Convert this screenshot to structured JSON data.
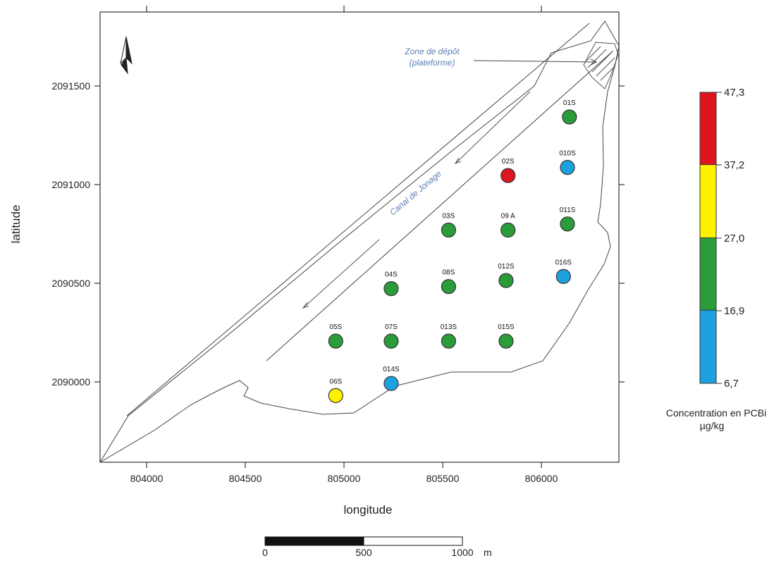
{
  "map": {
    "x_ticks": [
      "804000",
      "804500",
      "805000",
      "805500",
      "806000"
    ],
    "y_ticks": [
      "2091500",
      "2091000",
      "2090500",
      "2090000"
    ],
    "xlabel": "longitude",
    "ylabel": "latitude",
    "canal_label": "Canal de Jonage",
    "zone_label_line1": "Zone de dépôt",
    "zone_label_line2": "(plateforme)"
  },
  "legend": {
    "title_line1": "Concentration en PCBi",
    "title_line2": "µg/kg",
    "ticks": [
      "47,3",
      "37,2",
      "27,0",
      "16,9",
      "6,7"
    ],
    "classes": [
      {
        "from": 37.2,
        "to": 47.3,
        "color": "#e0141e"
      },
      {
        "from": 27.0,
        "to": 37.2,
        "color": "#fff200"
      },
      {
        "from": 16.9,
        "to": 27.0,
        "color": "#2a9d3a"
      },
      {
        "from": 6.7,
        "to": 16.9,
        "color": "#1ca0e0"
      }
    ]
  },
  "scale_bar": {
    "labels": [
      "0",
      "500",
      "1000"
    ],
    "unit": "m"
  },
  "chart_data": {
    "type": "scatter",
    "xlabel": "longitude",
    "ylabel": "latitude",
    "xlim": [
      803780,
      806400
    ],
    "ylim": [
      2089600,
      2091830
    ],
    "points": [
      {
        "name": "01S",
        "x": 806150,
        "y": 2091310,
        "class": "16.9-27.0",
        "color": "#2a9d3a"
      },
      {
        "name": "02S",
        "x": 805840,
        "y": 2091020,
        "class": "37.2-47.3",
        "color": "#e0141e"
      },
      {
        "name": "010S",
        "x": 806140,
        "y": 2091060,
        "class": "6.7-16.9",
        "color": "#1ca0e0"
      },
      {
        "name": "03S",
        "x": 805540,
        "y": 2090750,
        "class": "16.9-27.0",
        "color": "#2a9d3a"
      },
      {
        "name": "09 A",
        "x": 805840,
        "y": 2090750,
        "class": "16.9-27.0",
        "color": "#2a9d3a"
      },
      {
        "name": "011S",
        "x": 806140,
        "y": 2090780,
        "class": "16.9-27.0",
        "color": "#2a9d3a"
      },
      {
        "name": "016S",
        "x": 806120,
        "y": 2090520,
        "class": "6.7-16.9",
        "color": "#1ca0e0"
      },
      {
        "name": "04S",
        "x": 805250,
        "y": 2090460,
        "class": "16.9-27.0",
        "color": "#2a9d3a"
      },
      {
        "name": "08S",
        "x": 805540,
        "y": 2090470,
        "class": "16.9-27.0",
        "color": "#2a9d3a"
      },
      {
        "name": "012S",
        "x": 805830,
        "y": 2090500,
        "class": "16.9-27.0",
        "color": "#2a9d3a"
      },
      {
        "name": "05S",
        "x": 804970,
        "y": 2090200,
        "class": "16.9-27.0",
        "color": "#2a9d3a"
      },
      {
        "name": "07S",
        "x": 805250,
        "y": 2090200,
        "class": "16.9-27.0",
        "color": "#2a9d3a"
      },
      {
        "name": "013S",
        "x": 805540,
        "y": 2090200,
        "class": "16.9-27.0",
        "color": "#2a9d3a"
      },
      {
        "name": "015S",
        "x": 805830,
        "y": 2090200,
        "class": "16.9-27.0",
        "color": "#2a9d3a"
      },
      {
        "name": "06S",
        "x": 804970,
        "y": 2089930,
        "class": "27.0-37.2",
        "color": "#fff200"
      },
      {
        "name": "014S",
        "x": 805250,
        "y": 2089990,
        "class": "6.7-16.9",
        "color": "#1ca0e0"
      }
    ]
  }
}
